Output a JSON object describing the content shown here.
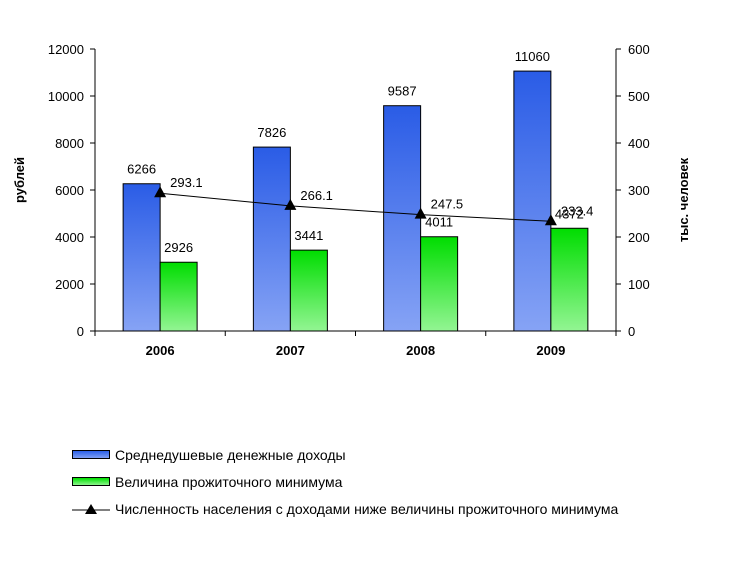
{
  "chart_data": {
    "type": "bar",
    "categories": [
      "2006",
      "2007",
      "2008",
      "2009"
    ],
    "series": [
      {
        "name": "Среднедушевые денежные доходы",
        "type": "bar",
        "axis": "left",
        "color": "#3a6cf0",
        "values": [
          6266,
          7826,
          9587,
          11060
        ]
      },
      {
        "name": "Величина прожиточного минимума",
        "type": "bar",
        "axis": "left",
        "color": "#22e822",
        "values": [
          2926,
          3441,
          4011,
          4372
        ]
      },
      {
        "name": "Численность населения с доходами ниже величины прожиточного минимума",
        "type": "line",
        "axis": "right",
        "color": "#000000",
        "values": [
          293.1,
          266.1,
          247.5,
          233.4
        ]
      }
    ],
    "ylabel": "рублей",
    "y2label": "тыс. человек",
    "ylim": [
      0,
      12000
    ],
    "y2lim": [
      0,
      600
    ],
    "yticks": [
      "0",
      "2000",
      "4000",
      "6000",
      "8000",
      "10000",
      "12000"
    ],
    "y2ticks": [
      "0",
      "100",
      "200",
      "300",
      "400",
      "500",
      "600"
    ],
    "grid": false,
    "legend": "bottom"
  }
}
